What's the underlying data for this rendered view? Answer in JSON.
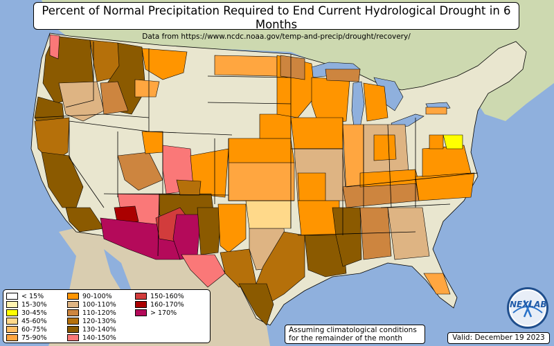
{
  "title": "Percent of Normal Precipitation Required to End Current Hydrological Drought in 6 Months",
  "subtitle": "Data from https://www.ncdc.noaa.gov/temp-and-precip/drought/recovery/",
  "legend": [
    {
      "label": "< 15%",
      "color": "#ffffff"
    },
    {
      "label": "15-30%",
      "color": "#fff3b0"
    },
    {
      "label": "30-45%",
      "color": "#ffff00"
    },
    {
      "label": "45-60%",
      "color": "#ffd98a"
    },
    {
      "label": "60-75%",
      "color": "#ffbf66"
    },
    {
      "label": "75-90%",
      "color": "#ffa640"
    },
    {
      "label": "90-100%",
      "color": "#ff9500"
    },
    {
      "label": "100-110%",
      "color": "#deb483"
    },
    {
      "label": "110-120%",
      "color": "#cd853f"
    },
    {
      "label": "120-130%",
      "color": "#b5700a"
    },
    {
      "label": "130-140%",
      "color": "#8b5a00"
    },
    {
      "label": "140-150%",
      "color": "#fa7878"
    },
    {
      "label": "150-160%",
      "color": "#d23c3c"
    },
    {
      "label": "160-170%",
      "color": "#aa0000"
    },
    {
      "label": "> 170%",
      "color": "#b40a5a"
    }
  ],
  "note": {
    "line1": "Assuming climatological conditions",
    "line2": "for the remainder of the month"
  },
  "valid": "Valid: December 19 2023",
  "logo_text": "NEXLAB",
  "colors": {
    "ocean": "#8fb0dd",
    "land_us": "#e9e6cf",
    "land_other": "#cfd9b3",
    "water": "#8fb0dd",
    "border": "#000000"
  }
}
